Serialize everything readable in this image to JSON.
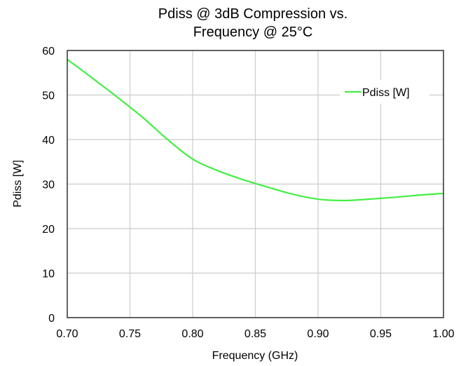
{
  "chart_data": {
    "type": "line",
    "title_lines": [
      "Pdiss @ 3dB Compression vs.",
      "Frequency @ 25°C"
    ],
    "xlabel": "Frequency (GHz)",
    "ylabel": "Pdiss [W]",
    "xlim": [
      0.7,
      1.0
    ],
    "ylim": [
      0,
      60
    ],
    "x_ticks": [
      "0.70",
      "0.75",
      "0.80",
      "0.85",
      "0.90",
      "0.95",
      "1.00"
    ],
    "y_ticks": [
      "0",
      "10",
      "20",
      "30",
      "40",
      "50",
      "60"
    ],
    "grid": true,
    "legend_position": "top-right",
    "series": [
      {
        "name": "Pdiss [W]",
        "color": "#44ee44",
        "x": [
          0.7,
          0.72,
          0.74,
          0.76,
          0.78,
          0.8,
          0.82,
          0.84,
          0.86,
          0.88,
          0.9,
          0.92,
          0.94,
          0.96,
          0.98,
          1.0
        ],
        "y": [
          58.0,
          53.8,
          49.5,
          45.0,
          40.0,
          35.6,
          33.0,
          31.0,
          29.3,
          27.7,
          26.6,
          26.3,
          26.6,
          27.0,
          27.5,
          27.9
        ]
      }
    ]
  }
}
